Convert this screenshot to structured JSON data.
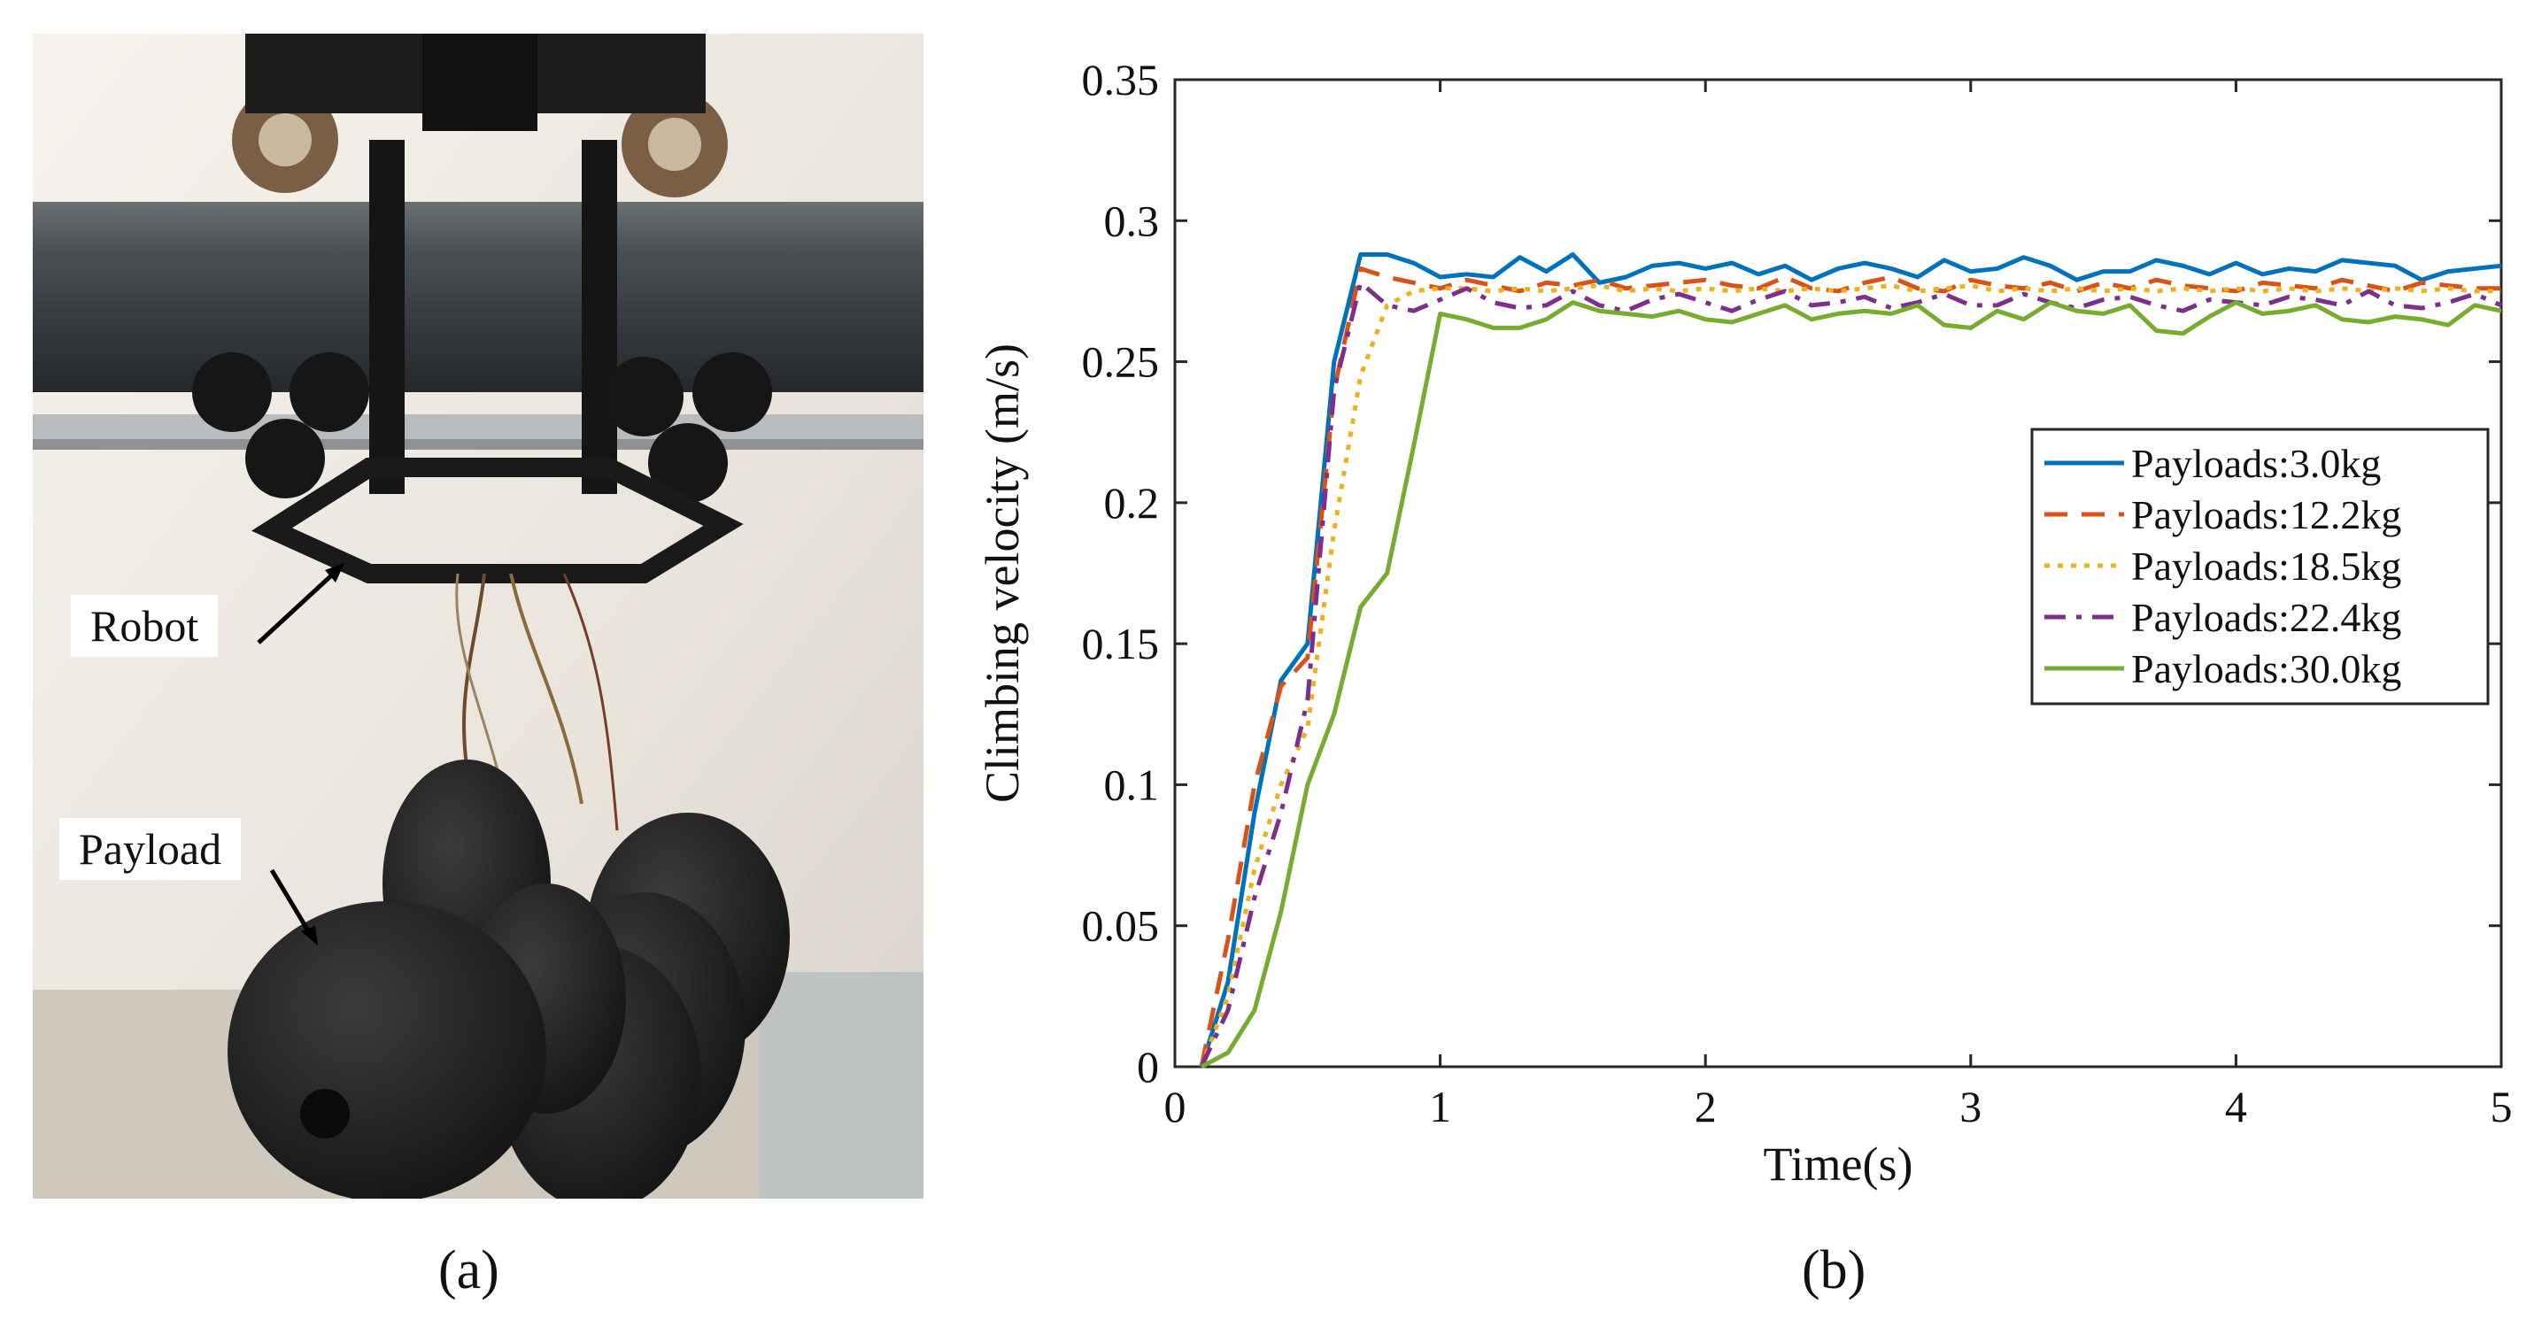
{
  "figure": {
    "photo_labels": {
      "robot": "Robot",
      "payload": "Payload"
    },
    "captions": {
      "a": "(a)",
      "b": "(b)"
    }
  },
  "chart_data": {
    "type": "line",
    "title": "",
    "xlabel": "Time(s)",
    "ylabel": "Climbing velocity (m/s)",
    "xlim": [
      0,
      5
    ],
    "ylim": [
      0,
      0.35
    ],
    "xticks": [
      0,
      1,
      2,
      3,
      4,
      5
    ],
    "xtick_labels": [
      "0",
      "1",
      "2",
      "3",
      "4",
      "5"
    ],
    "yticks": [
      0,
      0.05,
      0.1,
      0.15,
      0.2,
      0.25,
      0.3,
      0.35
    ],
    "ytick_labels": [
      "0",
      "0.05",
      "0.1",
      "0.15",
      "0.2",
      "0.25",
      "0.3",
      "0.35"
    ],
    "grid": false,
    "legend_position": "right",
    "x": [
      0.1,
      0.2,
      0.3,
      0.4,
      0.5,
      0.6,
      0.7,
      0.8,
      0.9,
      1.0,
      1.1,
      1.2,
      1.3,
      1.4,
      1.5,
      1.6,
      1.7,
      1.8,
      1.9,
      2.0,
      2.1,
      2.2,
      2.3,
      2.4,
      2.5,
      2.6,
      2.7,
      2.8,
      2.9,
      3.0,
      3.1,
      3.2,
      3.3,
      3.4,
      3.5,
      3.6,
      3.7,
      3.8,
      3.9,
      4.0,
      4.1,
      4.2,
      4.3,
      4.4,
      4.5,
      4.6,
      4.7,
      4.8,
      4.9,
      5.0
    ],
    "series": [
      {
        "name": "Payloads:3.0kg",
        "color": "#0072BD",
        "dash": "solid",
        "values": [
          0,
          0.03,
          0.09,
          0.137,
          0.15,
          0.25,
          0.288,
          0.288,
          0.285,
          0.28,
          0.281,
          0.28,
          0.287,
          0.282,
          0.288,
          0.278,
          0.28,
          0.284,
          0.285,
          0.283,
          0.285,
          0.281,
          0.284,
          0.279,
          0.283,
          0.285,
          0.283,
          0.28,
          0.286,
          0.282,
          0.283,
          0.287,
          0.284,
          0.279,
          0.282,
          0.282,
          0.286,
          0.284,
          0.281,
          0.285,
          0.281,
          0.283,
          0.282,
          0.286,
          0.285,
          0.284,
          0.279,
          0.282,
          0.283,
          0.284
        ]
      },
      {
        "name": "Payloads:12.2kg",
        "color": "#D95319",
        "dash": "dashed",
        "values": [
          0,
          0.045,
          0.1,
          0.135,
          0.145,
          0.24,
          0.283,
          0.28,
          0.278,
          0.276,
          0.279,
          0.277,
          0.275,
          0.278,
          0.277,
          0.279,
          0.276,
          0.277,
          0.278,
          0.279,
          0.277,
          0.276,
          0.28,
          0.276,
          0.275,
          0.278,
          0.28,
          0.276,
          0.275,
          0.279,
          0.277,
          0.276,
          0.278,
          0.275,
          0.278,
          0.276,
          0.279,
          0.277,
          0.276,
          0.275,
          0.278,
          0.277,
          0.276,
          0.279,
          0.277,
          0.275,
          0.278,
          0.277,
          0.276,
          0.276
        ]
      },
      {
        "name": "Payloads:18.5kg",
        "color": "#EDB120",
        "dash": "dotted",
        "values": [
          0,
          0.025,
          0.07,
          0.1,
          0.12,
          0.19,
          0.245,
          0.27,
          0.275,
          0.276,
          0.276,
          0.275,
          0.276,
          0.275,
          0.276,
          0.277,
          0.275,
          0.276,
          0.275,
          0.276,
          0.275,
          0.276,
          0.275,
          0.276,
          0.275,
          0.276,
          0.277,
          0.275,
          0.276,
          0.277,
          0.275,
          0.276,
          0.275,
          0.276,
          0.275,
          0.276,
          0.275,
          0.276,
          0.275,
          0.276,
          0.275,
          0.276,
          0.275,
          0.276,
          0.275,
          0.276,
          0.275,
          0.276,
          0.275,
          0.275
        ]
      },
      {
        "name": "Payloads:22.4kg",
        "color": "#7E2F8E",
        "dash": "dashdot",
        "values": [
          0,
          0.02,
          0.06,
          0.09,
          0.13,
          0.24,
          0.278,
          0.27,
          0.268,
          0.272,
          0.276,
          0.271,
          0.269,
          0.27,
          0.275,
          0.27,
          0.268,
          0.272,
          0.274,
          0.271,
          0.268,
          0.272,
          0.275,
          0.27,
          0.271,
          0.273,
          0.269,
          0.271,
          0.274,
          0.27,
          0.27,
          0.274,
          0.271,
          0.269,
          0.272,
          0.273,
          0.27,
          0.268,
          0.272,
          0.271,
          0.27,
          0.273,
          0.272,
          0.27,
          0.275,
          0.27,
          0.269,
          0.271,
          0.274,
          0.27
        ]
      },
      {
        "name": "Payloads:30.0kg",
        "color": "#77AC30",
        "dash": "solid",
        "values": [
          0,
          0.005,
          0.02,
          0.055,
          0.1,
          0.125,
          0.163,
          0.175,
          0.22,
          0.267,
          0.265,
          0.262,
          0.262,
          0.265,
          0.271,
          0.268,
          0.267,
          0.266,
          0.268,
          0.265,
          0.264,
          0.267,
          0.27,
          0.265,
          0.267,
          0.268,
          0.267,
          0.27,
          0.263,
          0.262,
          0.268,
          0.265,
          0.271,
          0.268,
          0.267,
          0.27,
          0.261,
          0.26,
          0.266,
          0.271,
          0.267,
          0.268,
          0.27,
          0.265,
          0.264,
          0.266,
          0.265,
          0.263,
          0.27,
          0.268
        ]
      }
    ]
  }
}
